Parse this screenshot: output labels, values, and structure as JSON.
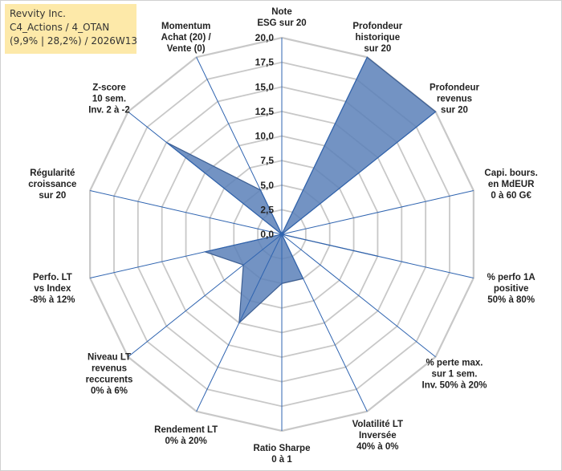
{
  "header": {
    "company": "Revvity Inc.",
    "category": "C4_Actions / 4_OTAN",
    "stats": "(9,9% | 28,2%) / 2026W13"
  },
  "chart_data": {
    "type": "radar",
    "rmin": 0,
    "rmax": 20,
    "ticks": [
      "0,0",
      "2,5",
      "5,0",
      "7,5",
      "10,0",
      "12,5",
      "15,0",
      "17,5",
      "20,0"
    ],
    "grid": true,
    "colors": {
      "fill": "#5a80b8",
      "stroke": "#3d5f93",
      "spoke": "#2f64b0",
      "grid": "#c8c8c8"
    },
    "categories": [
      [
        "Note",
        "ESG sur 20"
      ],
      [
        "Profondeur",
        "historique",
        "sur 20"
      ],
      [
        "Profondeur",
        "revenus",
        "sur 20"
      ],
      [
        "Capi. bours.",
        "en MdEUR",
        "0 à 60 G€"
      ],
      [
        "% perfo 1A",
        "positive",
        "50% à 80%"
      ],
      [
        "% perte max.",
        "sur 1 sem.",
        "Inv. 50% à 20%"
      ],
      [
        "Volatilité LT",
        "Inversée",
        "40% à 0%"
      ],
      [
        "Ratio Sharpe",
        "0 à 1"
      ],
      [
        "Rendement LT",
        "0% à 20%"
      ],
      [
        "Niveau LT",
        "revenus",
        "reccurents",
        "0% à 6%"
      ],
      [
        "Perfo. LT",
        "vs Index",
        "-8% à 12%"
      ],
      [
        "Régularité",
        "croissance",
        "sur 20"
      ],
      [
        "Z-score",
        "10 sem.",
        "Inv. 2 à -2"
      ],
      [
        "Momentum",
        "Achat (20) /",
        "Vente (0)"
      ]
    ],
    "values": [
      0,
      20,
      20,
      0,
      10,
      0,
      5,
      5,
      10,
      5,
      8,
      0,
      15,
      5
    ]
  }
}
